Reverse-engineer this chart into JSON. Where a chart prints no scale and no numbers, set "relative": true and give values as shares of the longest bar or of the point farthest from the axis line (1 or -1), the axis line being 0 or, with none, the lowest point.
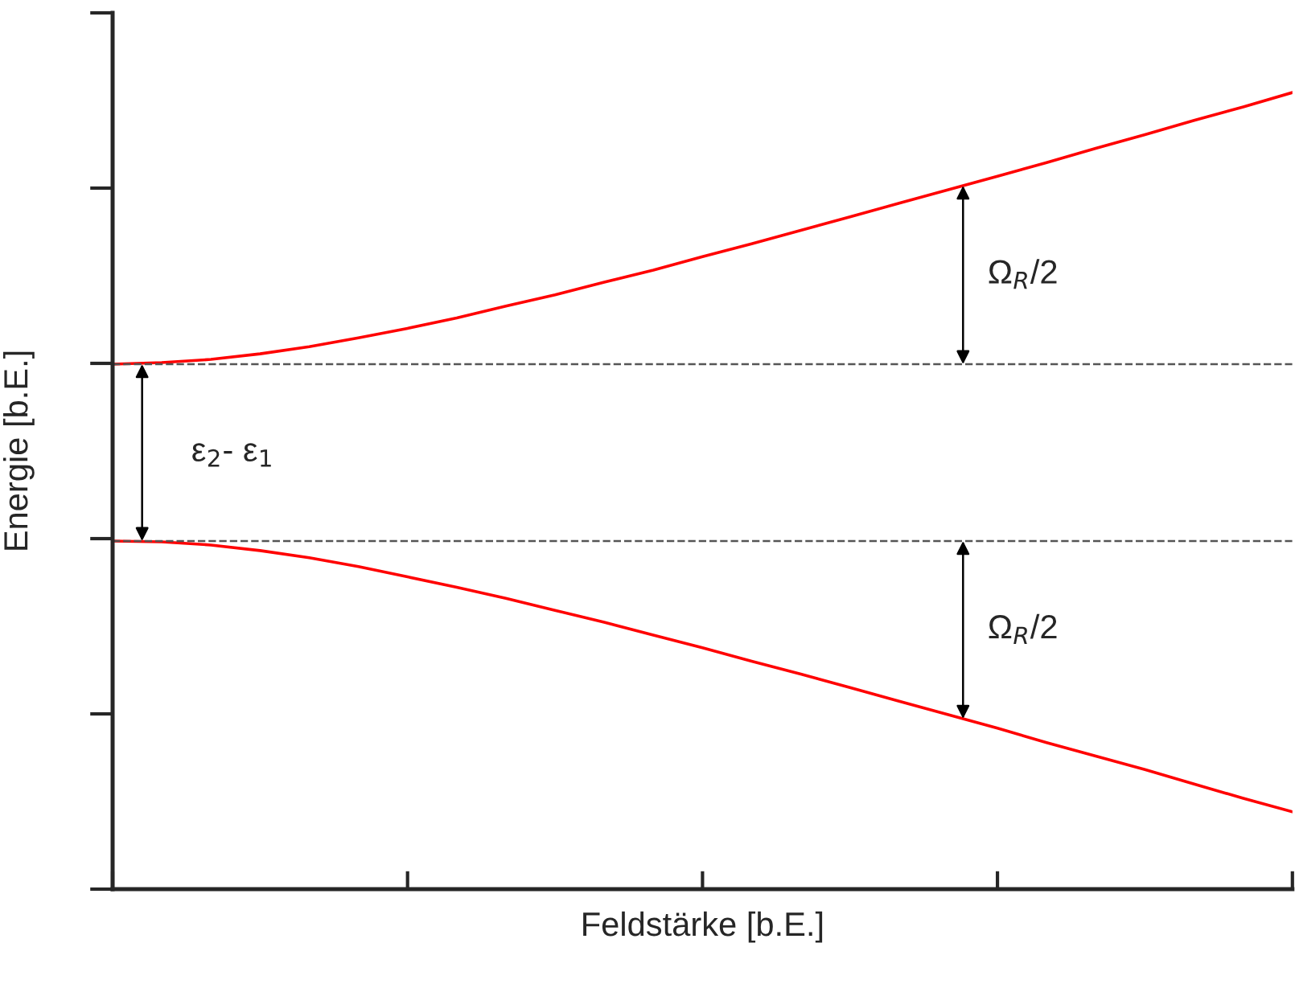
{
  "chart_data": {
    "type": "line",
    "relative": true,
    "xlabel": "Feldstärke [b.E.]",
    "ylabel": "Energie [b.E.]",
    "categories": [
      null,
      null,
      null,
      null,
      null,
      null,
      null,
      null,
      null,
      null,
      null,
      null,
      null,
      null,
      null,
      null,
      null,
      null,
      null,
      null,
      null,
      null,
      null,
      null,
      null
    ],
    "series": [
      {
        "color": "#ff0000",
        "values": [
          0.659,
          0.661,
          0.665,
          0.672,
          0.681,
          0.692,
          0.704,
          0.717,
          0.732,
          0.746,
          0.762,
          0.777,
          0.794,
          0.81,
          0.827,
          0.844,
          0.861,
          0.878,
          0.895,
          0.912,
          0.93,
          0.947,
          0.965,
          0.982,
          1.0
        ]
      },
      {
        "color": "#ff0000",
        "values": [
          0.437,
          0.436,
          0.432,
          0.425,
          0.416,
          0.405,
          0.392,
          0.379,
          0.365,
          0.35,
          0.335,
          0.319,
          0.303,
          0.286,
          0.27,
          0.253,
          0.236,
          0.219,
          0.202,
          0.184,
          0.167,
          0.15,
          0.132,
          0.114,
          0.097
        ]
      }
    ],
    "ref_lines": [
      {
        "axis": "y",
        "value": 0.659,
        "color": "#555555",
        "line_style": "dashed"
      },
      {
        "axis": "y",
        "value": 0.437,
        "color": "#555555",
        "line_style": "dashed"
      }
    ],
    "annotations": [
      "ε$_{2}$- ε$_{1}$",
      "Ω$_{R}$/2",
      "Ω$_{R}$/2"
    ],
    "marker": "none",
    "line_style": "solid",
    "grid": false,
    "legend": false,
    "tick_labels": false
  }
}
